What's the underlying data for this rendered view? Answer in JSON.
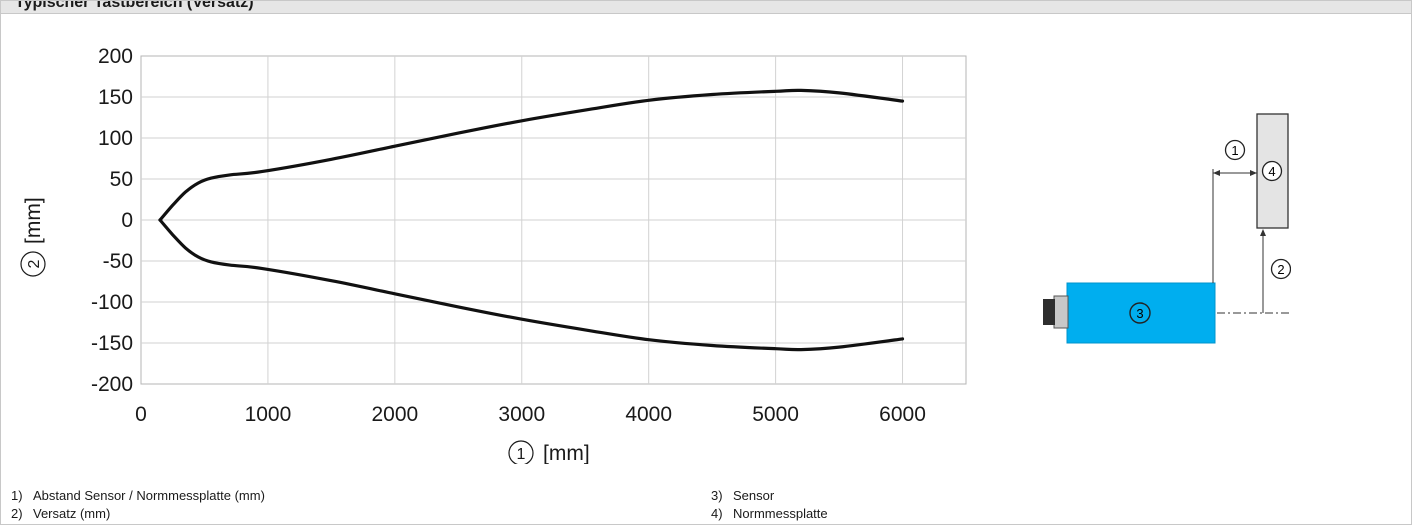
{
  "header": {
    "title": "Typischer Tastbereich (Versatz)"
  },
  "chart_data": {
    "type": "line",
    "xlabel": "[mm]",
    "xlabel_marker": "1",
    "ylabel": "[mm]",
    "ylabel_marker": "2",
    "xlim": [
      0,
      6500
    ],
    "ylim": [
      -200,
      200
    ],
    "x_ticks": [
      0,
      1000,
      2000,
      3000,
      4000,
      5000,
      6000
    ],
    "y_ticks": [
      200,
      150,
      100,
      50,
      0,
      -50,
      -100,
      -150,
      -200
    ],
    "grid": true,
    "series": [
      {
        "values": [
          [
            150,
            0
          ],
          [
            250,
            18
          ],
          [
            350,
            34
          ],
          [
            450,
            45
          ],
          [
            550,
            51
          ],
          [
            700,
            55
          ],
          [
            950,
            59
          ],
          [
            1500,
            74
          ],
          [
            2000,
            90
          ],
          [
            2500,
            106
          ],
          [
            3000,
            121
          ],
          [
            3500,
            134
          ],
          [
            4000,
            146
          ],
          [
            4500,
            153
          ],
          [
            5000,
            157
          ],
          [
            5200,
            158
          ],
          [
            5500,
            155
          ],
          [
            6000,
            145
          ]
        ]
      },
      {
        "values": [
          [
            150,
            0
          ],
          [
            250,
            -18
          ],
          [
            350,
            -34
          ],
          [
            450,
            -45
          ],
          [
            550,
            -51
          ],
          [
            700,
            -55
          ],
          [
            950,
            -59
          ],
          [
            1500,
            -74
          ],
          [
            2000,
            -90
          ],
          [
            2500,
            -106
          ],
          [
            3000,
            -121
          ],
          [
            3500,
            -134
          ],
          [
            4000,
            -146
          ],
          [
            4500,
            -153
          ],
          [
            5000,
            -157
          ],
          [
            5200,
            -158
          ],
          [
            5500,
            -155
          ],
          [
            6000,
            -145
          ]
        ]
      }
    ]
  },
  "diagram": {
    "callout_1": "1",
    "callout_2": "2",
    "callout_3": "3",
    "callout_4": "4",
    "sensor_color": "#00aeef"
  },
  "legend": [
    {
      "num": "1)",
      "text": "Abstand Sensor / Normmessplatte (mm)"
    },
    {
      "num": "2)",
      "text": "Versatz (mm)"
    },
    {
      "num": "3)",
      "text": "Sensor"
    },
    {
      "num": "4)",
      "text": "Normmessplatte"
    }
  ]
}
